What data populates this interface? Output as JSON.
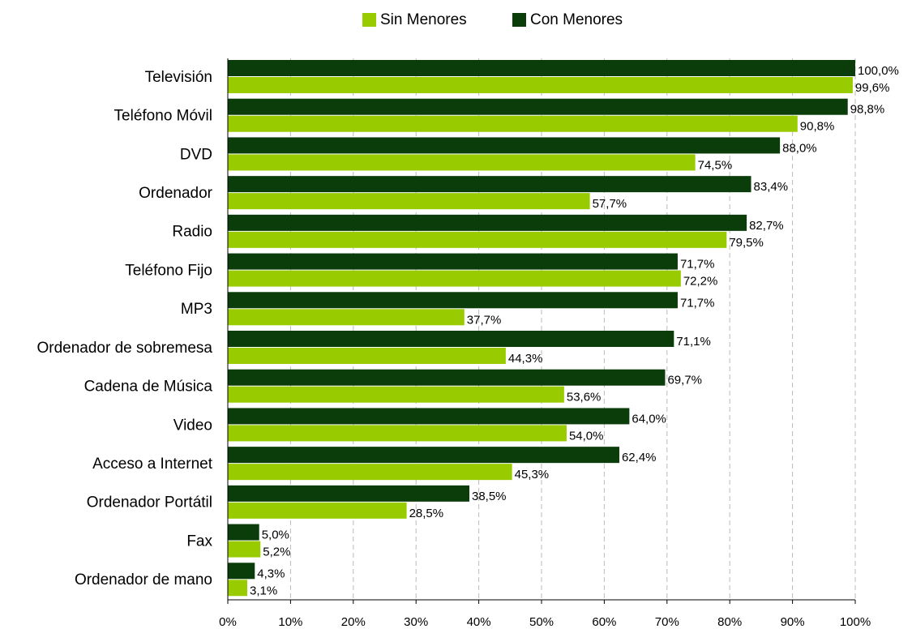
{
  "chart_data": {
    "type": "hbar",
    "categories": [
      "Televisión",
      "Teléfono Móvil",
      "DVD",
      "Ordenador",
      "Radio",
      "Teléfono Fijo",
      "MP3",
      "Ordenador de sobremesa",
      "Cadena de Música",
      "Video",
      "Acceso a Internet",
      "Ordenador Portátil",
      "Fax",
      "Ordenador de mano"
    ],
    "series": [
      {
        "name": "Sin Menores",
        "color": "#99cc00",
        "values": [
          99.6,
          90.8,
          74.5,
          57.7,
          79.5,
          72.2,
          37.7,
          44.3,
          53.6,
          54.0,
          45.3,
          28.5,
          5.2,
          3.1
        ],
        "value_labels": [
          "99,6%",
          "90,8%",
          "74,5%",
          "57,7%",
          "79,5%",
          "72,2%",
          "37,7%",
          "44,3%",
          "53,6%",
          "54,0%",
          "45,3%",
          "28,5%",
          "5,2%",
          "3,1%"
        ]
      },
      {
        "name": "Con Menores",
        "color": "#0a3d0a",
        "values": [
          100.0,
          98.8,
          88.0,
          83.4,
          82.7,
          71.7,
          71.7,
          71.1,
          69.7,
          64.0,
          62.4,
          38.5,
          5.0,
          4.3
        ],
        "value_labels": [
          "100,0%",
          "98,8%",
          "88,0%",
          "83,4%",
          "82,7%",
          "71,7%",
          "71,7%",
          "71,1%",
          "69,7%",
          "64,0%",
          "62,4%",
          "38,5%",
          "5,0%",
          "4,3%"
        ]
      }
    ],
    "xlim": [
      0,
      100
    ],
    "xticks": [
      {
        "value": 0,
        "label": "0%"
      },
      {
        "value": 10,
        "label": "10%"
      },
      {
        "value": 20,
        "label": "20%"
      },
      {
        "value": 30,
        "label": "30%"
      },
      {
        "value": 40,
        "label": "40%"
      },
      {
        "value": 50,
        "label": "50%"
      },
      {
        "value": 60,
        "label": "60%"
      },
      {
        "value": 70,
        "label": "70%"
      },
      {
        "value": 80,
        "label": "80%"
      },
      {
        "value": 90,
        "label": "90%"
      },
      {
        "value": 100,
        "label": "100%"
      }
    ],
    "grid": true,
    "legend": "top"
  }
}
